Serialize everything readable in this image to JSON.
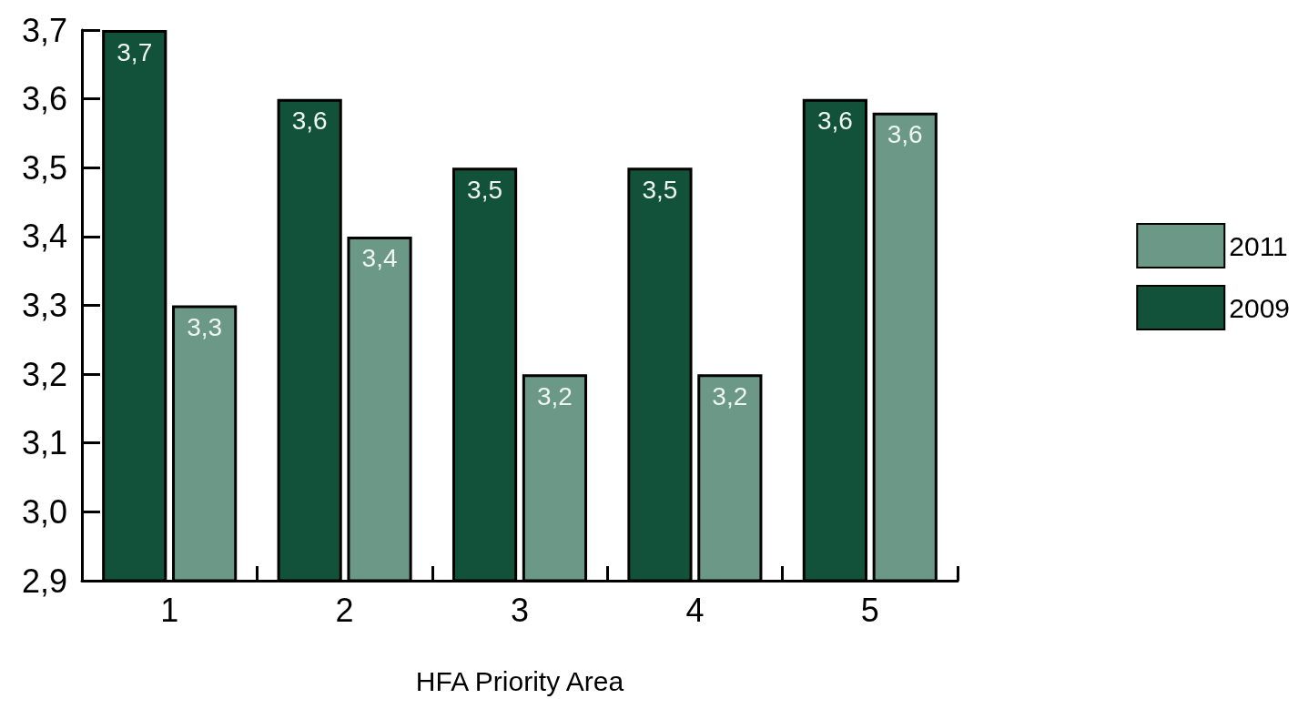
{
  "chart_data": {
    "type": "bar",
    "xlabel": "HFA Priority Area",
    "categories": [
      "1",
      "2",
      "3",
      "4",
      "5"
    ],
    "series": [
      {
        "name": "2009",
        "color": "#13523a",
        "values": [
          3.7,
          3.6,
          3.5,
          3.5,
          3.6
        ],
        "value_labels": [
          "3,7",
          "3,6",
          "3,5",
          "3,5",
          "3,6"
        ]
      },
      {
        "name": "2011",
        "color": "#6b9887",
        "values": [
          3.3,
          3.4,
          3.2,
          3.2,
          3.58
        ],
        "value_labels": [
          "3,3",
          "3,4",
          "3,2",
          "3,2",
          "3,6"
        ]
      }
    ],
    "ylim": [
      2.9,
      3.7
    ],
    "yticks": [
      {
        "value": 2.9,
        "label": "2,9"
      },
      {
        "value": 3.0,
        "label": "3,0"
      },
      {
        "value": 3.1,
        "label": "3,1"
      },
      {
        "value": 3.2,
        "label": "3,2"
      },
      {
        "value": 3.3,
        "label": "3,3"
      },
      {
        "value": 3.4,
        "label": "3,4"
      },
      {
        "value": 3.5,
        "label": "3,5"
      },
      {
        "value": 3.6,
        "label": "3,6"
      },
      {
        "value": 3.7,
        "label": "3,7"
      }
    ],
    "grid": false,
    "legend": "right"
  }
}
